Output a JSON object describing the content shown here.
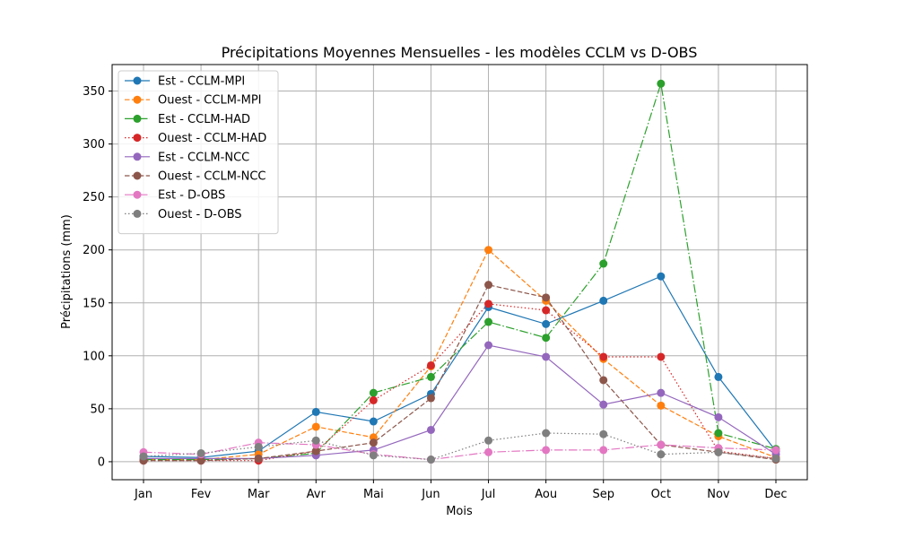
{
  "chart_data": {
    "type": "line",
    "title": "Précipitations Moyennes Mensuelles - les modèles CCLM vs D-OBS",
    "xlabel": "Mois",
    "ylabel": "Précipitations (mm)",
    "categories": [
      "Jan",
      "Fev",
      "Mar",
      "Avr",
      "Mai",
      "Jun",
      "Jul",
      "Aou",
      "Sep",
      "Oct",
      "Nov",
      "Dec"
    ],
    "ylim": [
      -17,
      375
    ],
    "yticks": [
      0,
      50,
      100,
      150,
      200,
      250,
      300,
      350
    ],
    "grid": true,
    "legend_position": "upper-left",
    "series": [
      {
        "name": "Est - CCLM-MPI",
        "color": "#1f77b4",
        "dash": "solid",
        "values": [
          5,
          4,
          10,
          47,
          38,
          64,
          146,
          130,
          152,
          175,
          80,
          10
        ]
      },
      {
        "name": "Ouest - CCLM-MPI",
        "color": "#ff7f0e",
        "dash": "dashed",
        "values": [
          2,
          2,
          7,
          33,
          23,
          90,
          200,
          152,
          97,
          53,
          24,
          4
        ]
      },
      {
        "name": "Est - CCLM-HAD",
        "color": "#2ca02c",
        "dash": "dashdot",
        "values": [
          2,
          2,
          3,
          8,
          65,
          80,
          132,
          117,
          187,
          357,
          27,
          12
        ]
      },
      {
        "name": "Ouest - CCLM-HAD",
        "color": "#d62728",
        "dash": "dotted",
        "values": [
          1,
          1,
          1,
          10,
          58,
          91,
          149,
          143,
          99,
          99,
          10,
          3
        ]
      },
      {
        "name": "Est - CCLM-NCC",
        "color": "#9467bd",
        "dash": "solid",
        "values": [
          3,
          3,
          3,
          6,
          11,
          30,
          110,
          99,
          54,
          65,
          42,
          7
        ]
      },
      {
        "name": "Ouest - CCLM-NCC",
        "color": "#8c564b",
        "dash": "dashed",
        "values": [
          1,
          1,
          3,
          10,
          18,
          60,
          167,
          155,
          77,
          16,
          9,
          2
        ]
      },
      {
        "name": "Est - D-OBS",
        "color": "#e377c2",
        "dash": "dashdot",
        "values": [
          9,
          7,
          18,
          16,
          7,
          2,
          9,
          11,
          11,
          16,
          13,
          11
        ]
      },
      {
        "name": "Ouest - D-OBS",
        "color": "#7f7f7f",
        "dash": "dotted",
        "values": [
          5,
          8,
          14,
          20,
          6,
          2,
          20,
          27,
          26,
          7,
          9,
          3
        ]
      }
    ]
  }
}
